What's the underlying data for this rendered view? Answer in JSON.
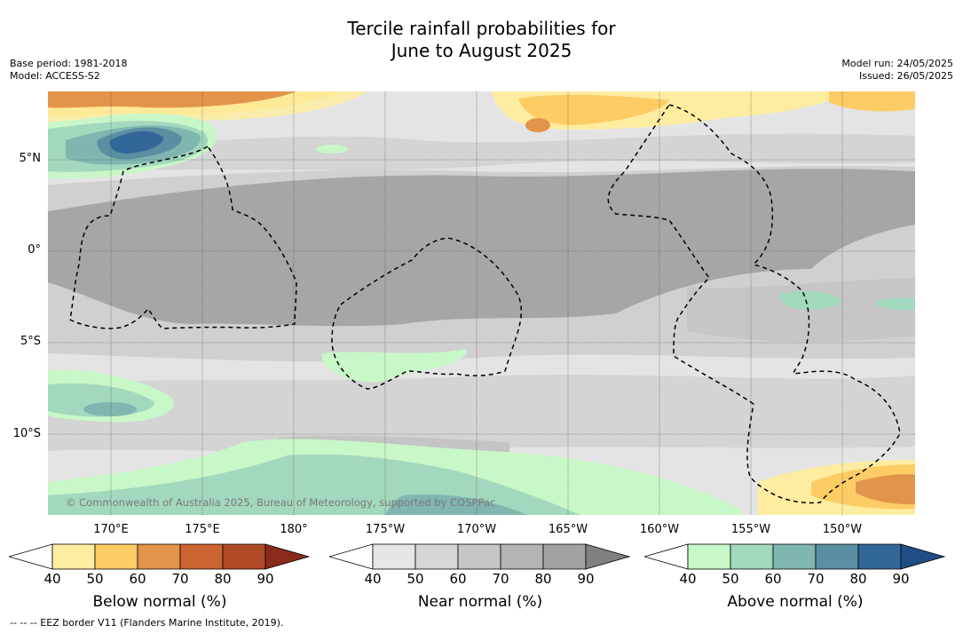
{
  "title_line1": "Tercile rainfall probabilities for",
  "title_line2": "June to August 2025",
  "base_period": "Base period: 1981-2018",
  "model": "Model: ACCESS-S2",
  "model_run": "Model run: 24/05/2025",
  "issued": "Issued: 26/05/2025",
  "copyright": "© Commonwealth of Australia 2025, Bureau of Meteorology, supported by COSPPac",
  "footnote": "--  --  -- EEZ border V11 (Flanders Marine Institute, 2019).",
  "lat_labels": [
    "5°N",
    "0°",
    "5°S",
    "10°S"
  ],
  "lon_labels": [
    "170°E",
    "175°E",
    "180°",
    "175°W",
    "170°W",
    "165°W",
    "160°W",
    "155°W",
    "150°W"
  ],
  "colorbars": {
    "below": {
      "title": "Below normal (%)",
      "ticks": [
        "40",
        "50",
        "60",
        "70",
        "80",
        "90"
      ],
      "colors": [
        "#ffffff",
        "#feeda0",
        "#fdcc65",
        "#e2944a",
        "#cc6533",
        "#b04a26",
        "#8a2a1a"
      ]
    },
    "near": {
      "title": "Near normal (%)",
      "ticks": [
        "40",
        "50",
        "60",
        "70",
        "80",
        "90"
      ],
      "colors": [
        "#ffffff",
        "#e6e6e6",
        "#d6d6d6",
        "#c6c6c6",
        "#b4b4b4",
        "#a2a2a2",
        "#808080"
      ]
    },
    "above": {
      "title": "Above normal (%)",
      "ticks": [
        "40",
        "50",
        "60",
        "70",
        "80",
        "90"
      ],
      "colors": [
        "#ffffff",
        "#c8f7c8",
        "#a2d8bd",
        "#80b6b0",
        "#5a8fa2",
        "#336699",
        "#1f4e86"
      ]
    }
  }
}
